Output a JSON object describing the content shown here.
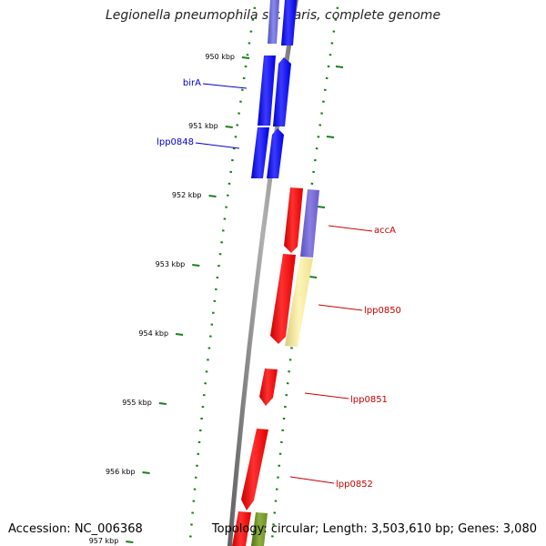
{
  "title": "Legionella pneumophila str. Paris, complete genome",
  "footer": {
    "accession": "Accession: NC_006368",
    "details": "Topology: circular; Length: 3,503,610 bp; Genes: 3,080"
  },
  "colors": {
    "forward_gene": "#0000ff",
    "reverse_gene": "#ff0000",
    "cog_blue": "#6a5acd",
    "cog_yellow": "#f0e68c",
    "cog_green": "#6b8e23",
    "backbone": "#808080",
    "tick": "#1a7f1a",
    "forward_label": "#0000cc",
    "reverse_label": "#cc0000"
  },
  "ticks": [
    {
      "kbp": 950,
      "label": "950 kbp"
    },
    {
      "kbp": 951,
      "label": "951 kbp"
    },
    {
      "kbp": 952,
      "label": "952 kbp"
    },
    {
      "kbp": 953,
      "label": "953 kbp"
    },
    {
      "kbp": 954,
      "label": "954 kbp"
    },
    {
      "kbp": 955,
      "label": "955 kbp"
    },
    {
      "kbp": 956,
      "label": "956 kbp"
    },
    {
      "kbp": 957,
      "label": "957 kbp"
    }
  ],
  "labels": {
    "birA": "birA",
    "lpp0848": "lpp0848",
    "accA": "accA",
    "lpp0850": "lpp0850",
    "lpp0851": "lpp0851",
    "lpp0852": "lpp0852"
  }
}
